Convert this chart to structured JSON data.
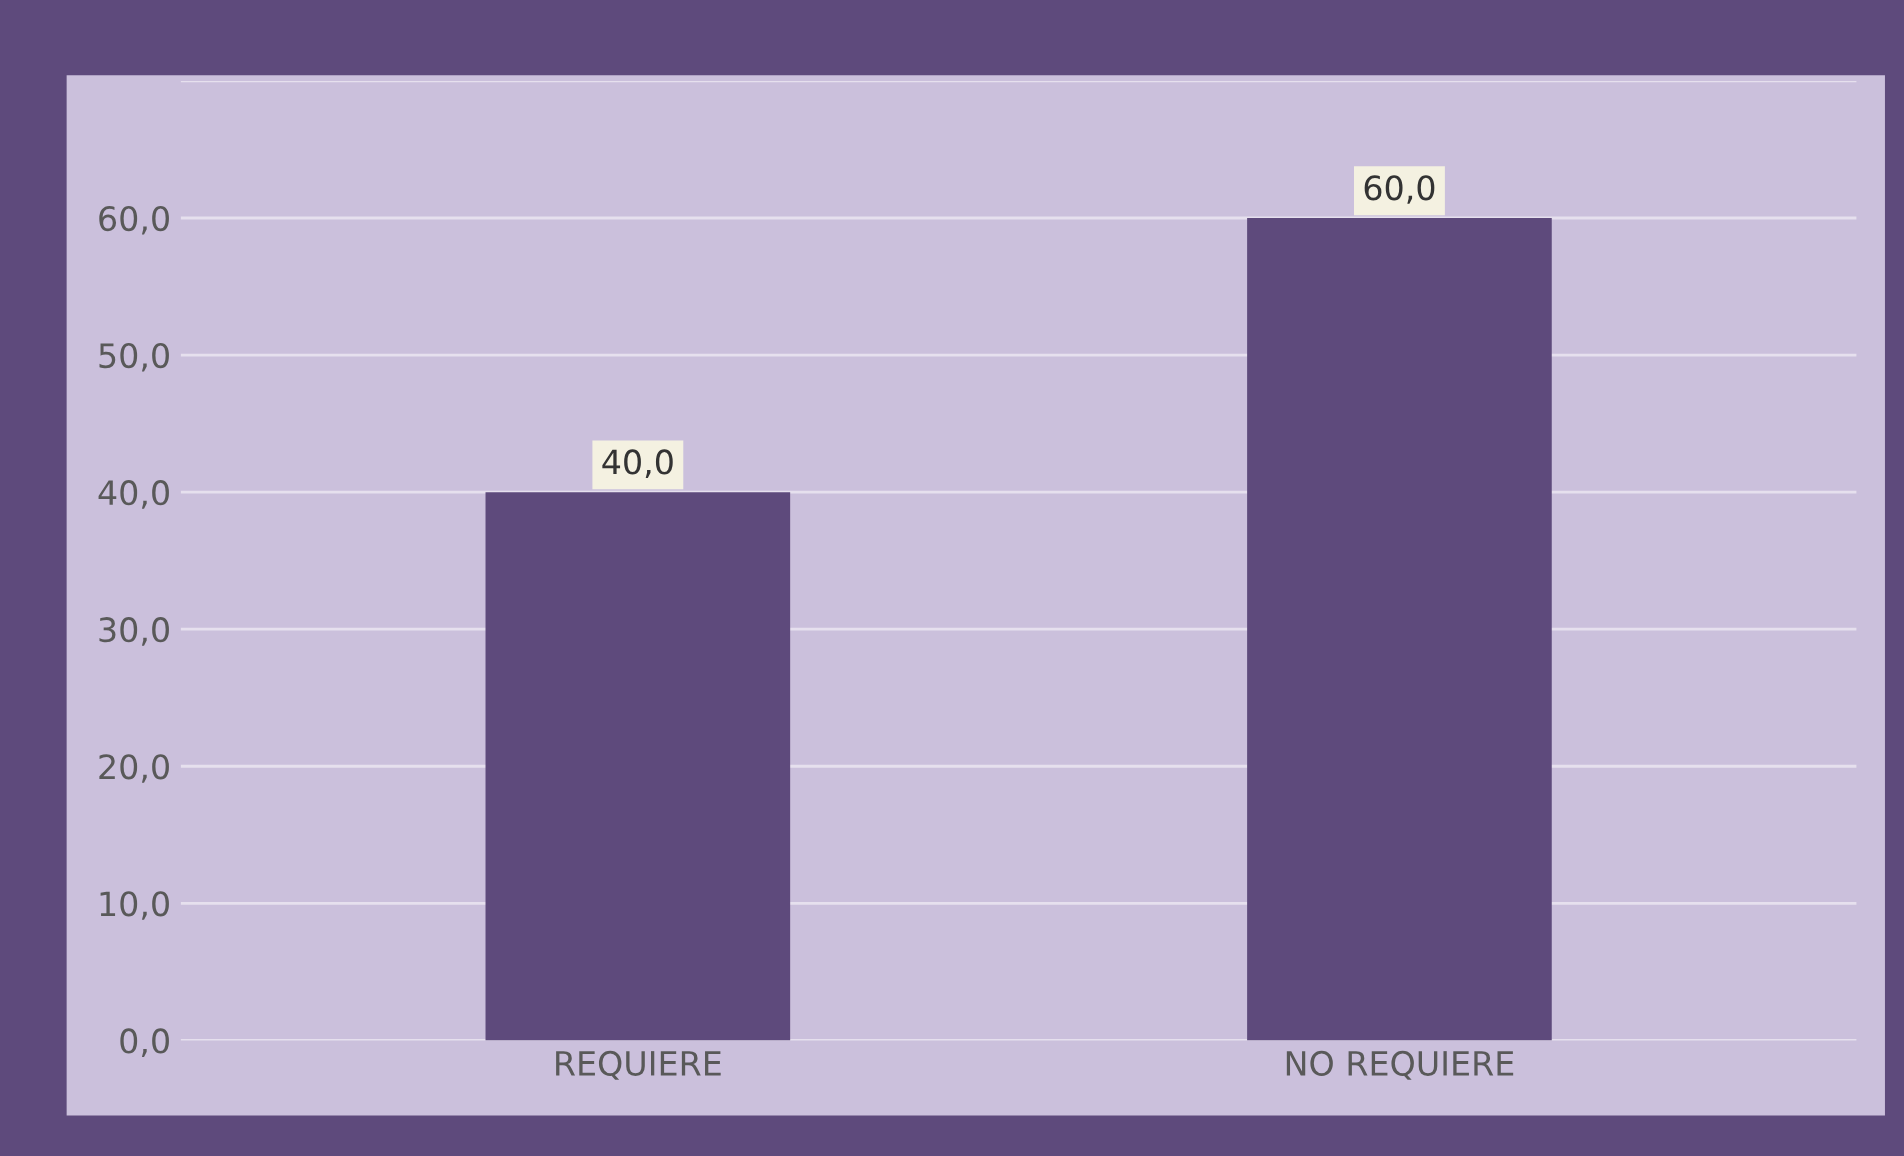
{
  "chart_data": {
    "type": "bar",
    "categories": [
      "REQUIERE",
      "NO REQUIERE"
    ],
    "values": [
      40.0,
      60.0
    ],
    "value_labels": [
      "40,0",
      "60,0"
    ],
    "color": "#5e4a7c",
    "ylim": [
      0,
      70
    ],
    "yticks": [
      {
        "value": 0,
        "label": "0,0"
      },
      {
        "value": 10,
        "label": "10,0"
      },
      {
        "value": 20,
        "label": "20,0"
      },
      {
        "value": 30,
        "label": "30,0"
      },
      {
        "value": 40,
        "label": "40,0"
      },
      {
        "value": 50,
        "label": "50,0"
      },
      {
        "value": 60,
        "label": "60,0"
      },
      {
        "value": 70,
        "label": null
      }
    ],
    "grid": "y",
    "legend": false
  }
}
